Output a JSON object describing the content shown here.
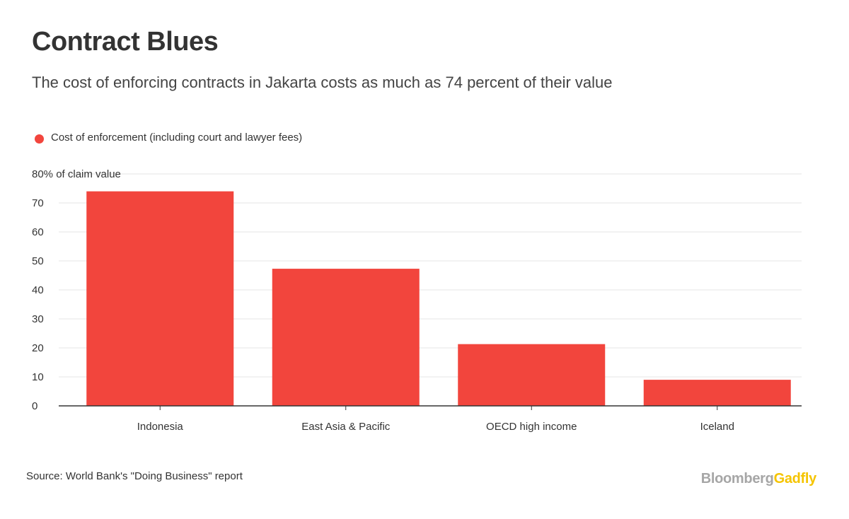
{
  "header": {
    "title": "Contract Blues",
    "subtitle": "The cost of enforcing contracts in Jakarta costs as much as 74 percent of their value"
  },
  "footer": {
    "source": "Source: World Bank's \"Doing Business\" report",
    "brand_main": "Bloomberg",
    "brand_accent": "Gadfly"
  },
  "colors": {
    "bar": "#f2453d",
    "gridline": "#e6e6e6",
    "axis": "#333333",
    "brand_gray": "#a6a6a6",
    "brand_yellow": "#f5c400"
  },
  "chart_data": {
    "type": "bar",
    "title": "Contract Blues",
    "subtitle": "The cost of enforcing contracts in Jakarta costs as much as 74 percent of their value",
    "categories": [
      "Indonesia",
      "East Asia & Pacific",
      "OECD high income",
      "Iceland"
    ],
    "series": [
      {
        "name": "Cost of enforcement (including court and lawyer fees)",
        "values": [
          74,
          47.3,
          21.3,
          9
        ]
      }
    ],
    "xlabel": "",
    "ylabel": "",
    "ylim": [
      0,
      80
    ],
    "yticks": [
      0,
      10,
      20,
      30,
      40,
      50,
      60,
      70,
      80
    ],
    "ytick_labels": [
      "0",
      "10",
      "20",
      "30",
      "40",
      "50",
      "60",
      "70",
      "80% of claim value"
    ],
    "grid": true,
    "legend_position": "top-left"
  }
}
